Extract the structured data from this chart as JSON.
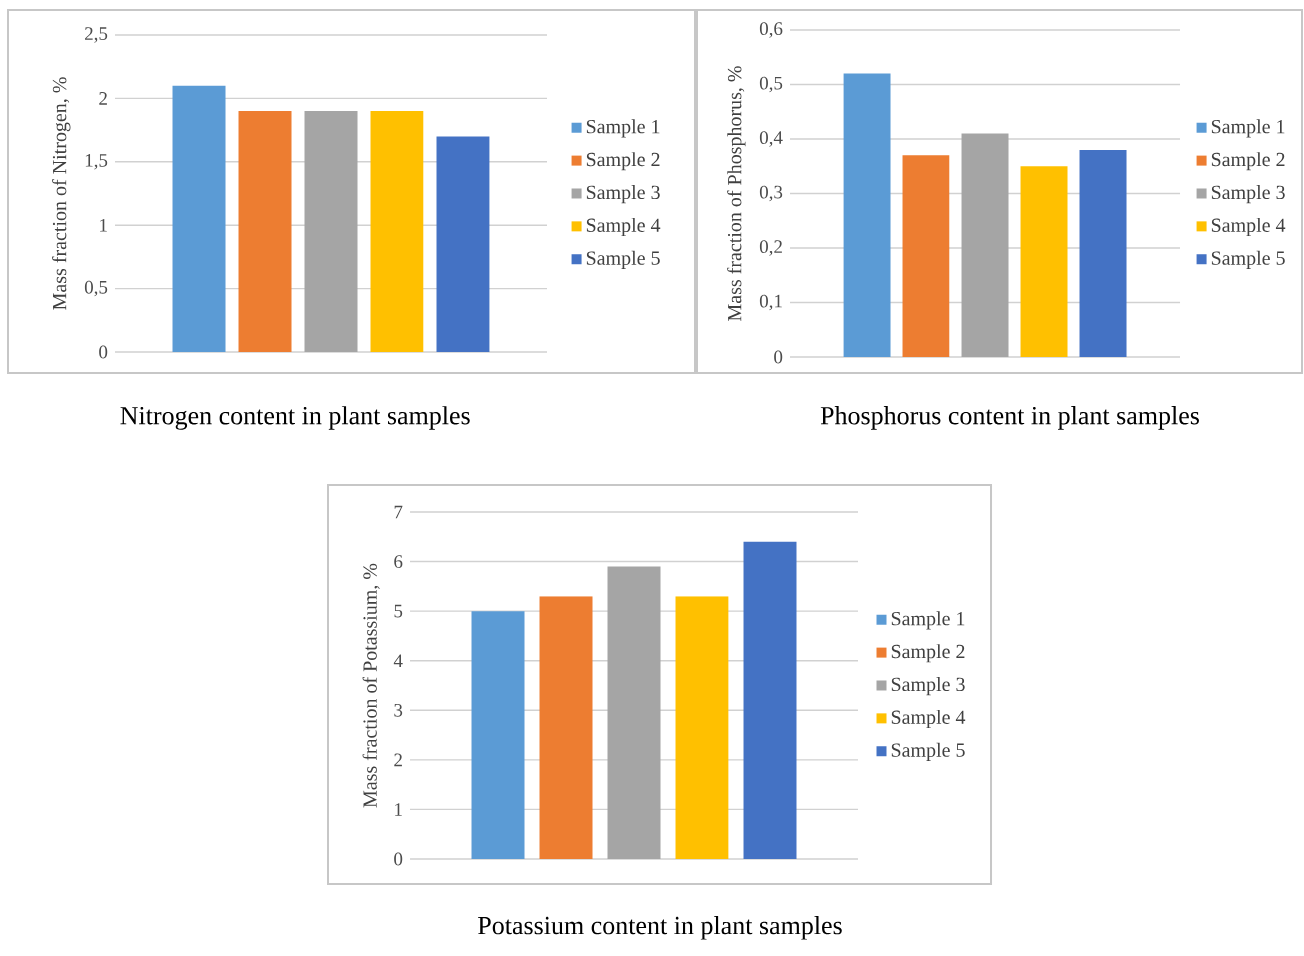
{
  "chart_data": [
    {
      "type": "bar",
      "title": "Nitrogen content in plant samples",
      "ylabel": "Mass fraction of Nitrogen, %",
      "categories": [
        null
      ],
      "series": [
        {
          "name": "Sample 1",
          "color": "#5b9bd5",
          "values": [
            2.1
          ]
        },
        {
          "name": "Sample 2",
          "color": "#ed7d31",
          "values": [
            1.9
          ]
        },
        {
          "name": "Sample 3",
          "color": "#a5a5a5",
          "values": [
            1.9
          ]
        },
        {
          "name": "Sample 4",
          "color": "#ffc000",
          "values": [
            1.9
          ]
        },
        {
          "name": "Sample 5",
          "color": "#4472c4",
          "values": [
            1.7
          ]
        }
      ],
      "ylim": [
        0,
        2.5
      ],
      "yticks": [
        0,
        {
          "value": 0.5,
          "label": "0,5"
        },
        1,
        {
          "value": 1.5,
          "label": "1,5"
        },
        2,
        {
          "value": 2.5,
          "label": "2,5"
        }
      ],
      "grid": "y",
      "legend": "right"
    },
    {
      "type": "bar",
      "title": "Phosphorus content in plant samples",
      "ylabel": "Mass fraction of Phosphorus, %",
      "categories": [
        null
      ],
      "series": [
        {
          "name": "Sample 1",
          "color": "#5b9bd5",
          "values": [
            0.52
          ]
        },
        {
          "name": "Sample 2",
          "color": "#ed7d31",
          "values": [
            0.37
          ]
        },
        {
          "name": "Sample 3",
          "color": "#a5a5a5",
          "values": [
            0.41
          ]
        },
        {
          "name": "Sample 4",
          "color": "#ffc000",
          "values": [
            0.35
          ]
        },
        {
          "name": "Sample 5",
          "color": "#4472c4",
          "values": [
            0.38
          ]
        }
      ],
      "ylim": [
        0,
        0.6
      ],
      "yticks": [
        0,
        {
          "value": 0.1,
          "label": "0,1"
        },
        {
          "value": 0.2,
          "label": "0,2"
        },
        {
          "value": 0.3,
          "label": "0,3"
        },
        {
          "value": 0.4,
          "label": "0,4"
        },
        {
          "value": 0.5,
          "label": "0,5"
        },
        {
          "value": 0.6,
          "label": "0,6"
        }
      ],
      "grid": "y",
      "legend": "right"
    },
    {
      "type": "bar",
      "title": "Potassium content in plant samples",
      "ylabel": "Mass fraction of Potassium, %",
      "categories": [
        null
      ],
      "series": [
        {
          "name": "Sample 1",
          "color": "#5b9bd5",
          "values": [
            5.0
          ]
        },
        {
          "name": "Sample 2",
          "color": "#ed7d31",
          "values": [
            5.3
          ]
        },
        {
          "name": "Sample 3",
          "color": "#a5a5a5",
          "values": [
            5.9
          ]
        },
        {
          "name": "Sample 4",
          "color": "#ffc000",
          "values": [
            5.3
          ]
        },
        {
          "name": "Sample 5",
          "color": "#4472c4",
          "values": [
            6.4
          ]
        }
      ],
      "ylim": [
        0,
        7
      ],
      "yticks": [
        0,
        1,
        2,
        3,
        4,
        5,
        6,
        7
      ],
      "grid": "y",
      "legend": "right"
    }
  ]
}
